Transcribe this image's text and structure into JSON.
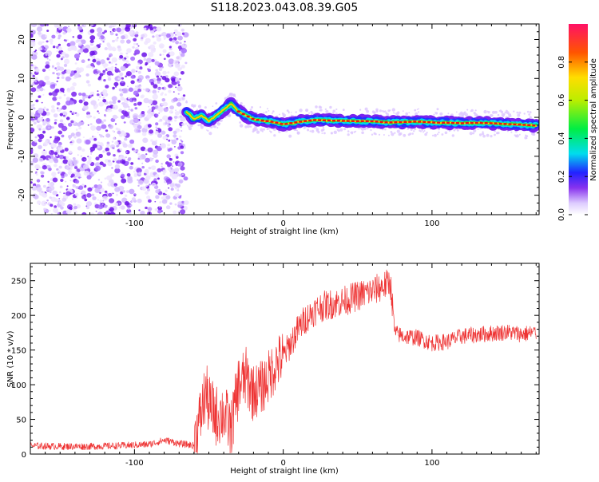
{
  "title": "S118.2023.043.08.39.G05",
  "chart_data": [
    {
      "type": "heatmap",
      "xlabel": "Height of straight line (km)",
      "ylabel": "Frequency (Hz)",
      "xlim": [
        -170,
        172
      ],
      "ylim": [
        -25,
        24
      ],
      "xticks": [
        -100,
        0,
        100
      ],
      "xtick_labels": [
        "-100",
        "0",
        "100"
      ],
      "yticks": [
        -20,
        -10,
        0,
        10,
        20
      ],
      "ytick_labels": [
        "-20",
        "-10",
        "0",
        "10",
        "20"
      ],
      "noise_region_x": [
        -170,
        -65
      ],
      "ridge": {
        "x": [
          -65,
          -60,
          -55,
          -50,
          -45,
          -40,
          -35,
          -30,
          -25,
          -20,
          -15,
          -10,
          -5,
          0,
          10,
          20,
          30,
          40,
          50,
          60,
          70,
          80,
          90,
          100,
          110,
          120,
          130,
          140,
          150,
          160,
          170
        ],
        "y": [
          1.5,
          -0.5,
          0.5,
          -1,
          0.5,
          2.0,
          3.5,
          1.5,
          0.5,
          -0.5,
          -0.8,
          -1.0,
          -1.3,
          -1.8,
          -1.2,
          -0.7,
          -0.8,
          -0.9,
          -1.0,
          -1.0,
          -1.3,
          -1.2,
          -1.1,
          -1.3,
          -1.4,
          -1.5,
          -1.4,
          -1.5,
          -1.7,
          -1.9,
          -2.1
        ]
      },
      "colorbar": {
        "label": "Normalized spectral amplitude",
        "range": [
          0,
          1
        ],
        "ticks": [
          0.0,
          0.2,
          0.4,
          0.6,
          0.8
        ],
        "tick_labels": [
          "0.0",
          "0.2",
          "0.4",
          "0.6",
          "0.8"
        ]
      },
      "grid": false
    },
    {
      "type": "line",
      "xlabel": "Height of straight line (km)",
      "ylabel": "SNR (10 * v/v)",
      "xlim": [
        -170,
        172
      ],
      "ylim": [
        0,
        275
      ],
      "xticks": [
        -100,
        0,
        100
      ],
      "xtick_labels": [
        "-100",
        "0",
        "100"
      ],
      "yticks": [
        0,
        50,
        100,
        150,
        200,
        250
      ],
      "ytick_labels": [
        "0",
        "50",
        "100",
        "150",
        "200",
        "250"
      ],
      "color": "#ee3333",
      "series": [
        {
          "x": [
            -170,
            -150,
            -130,
            -110,
            -90,
            -80,
            -75,
            -70,
            -65,
            -60,
            -55,
            -52,
            -50,
            -45,
            -40,
            -35,
            -30,
            -25,
            -20,
            -15,
            -10,
            -5,
            0,
            5,
            10,
            15,
            20,
            25,
            30,
            40,
            50,
            60,
            65,
            70,
            72,
            75,
            80,
            90,
            100,
            110,
            120,
            130,
            140,
            150,
            160,
            170
          ],
          "y": [
            12,
            11,
            11,
            12,
            14,
            20,
            18,
            15,
            14,
            12,
            60,
            90,
            70,
            55,
            60,
            35,
            100,
            110,
            90,
            95,
            110,
            130,
            140,
            160,
            180,
            195,
            205,
            212,
            215,
            220,
            228,
            235,
            240,
            245,
            250,
            175,
            170,
            168,
            160,
            162,
            170,
            172,
            174,
            176,
            173,
            175
          ]
        }
      ],
      "grid": false
    }
  ]
}
